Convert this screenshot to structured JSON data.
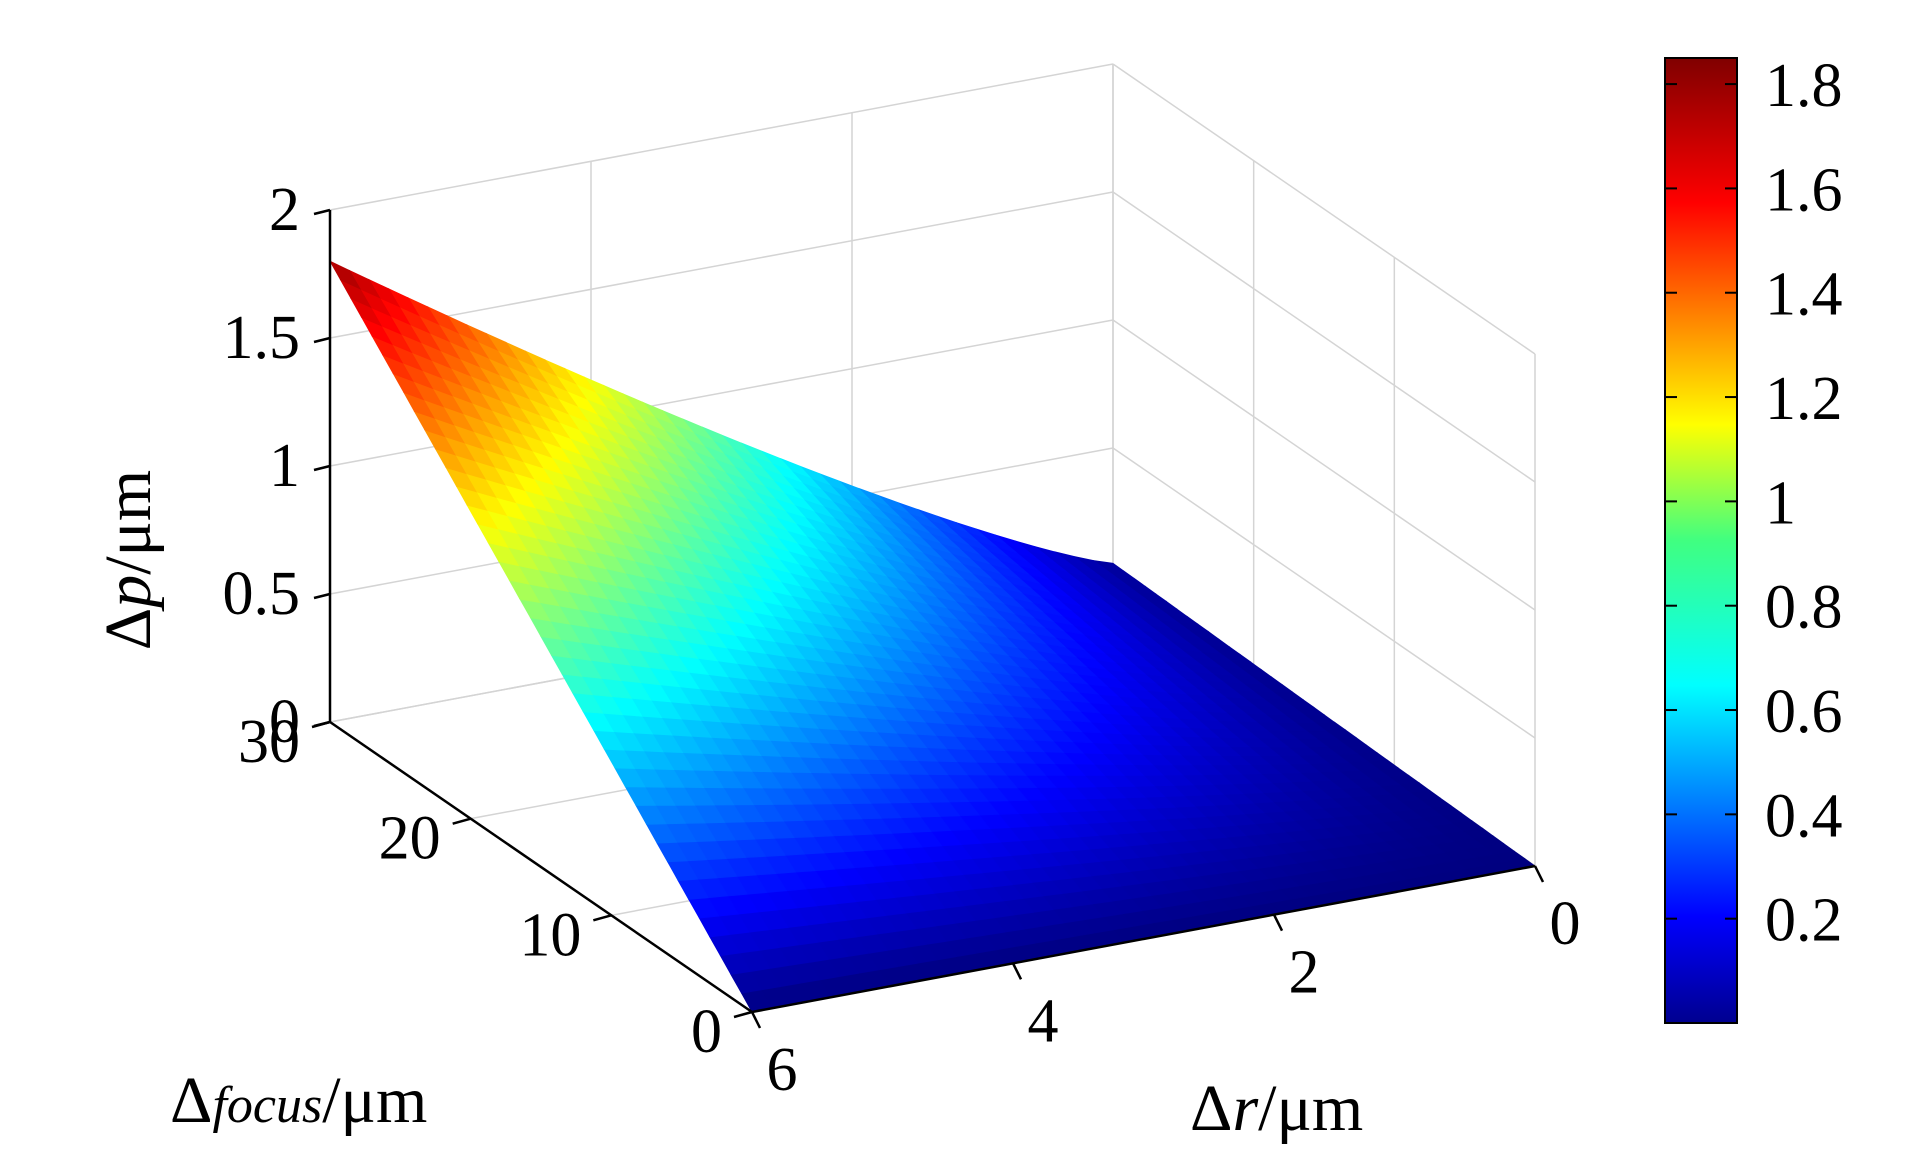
{
  "chart_data": {
    "type": "surface3d",
    "colormap": "jet",
    "grid": true,
    "surface": {
      "description_of_function": "dp decreases from 1.8 at (r=6, focus=30) toward 0 at focus=0 and r=0",
      "r_range": [
        0,
        6
      ],
      "focus_range": [
        0,
        30
      ],
      "corners": [
        {
          "r": 6,
          "focus": 30,
          "dp": 1.8
        },
        {
          "r": 0,
          "focus": 30,
          "dp": 0.05
        },
        {
          "r": 0,
          "focus": 0,
          "dp": 0.0
        },
        {
          "r": 6,
          "focus": 0,
          "dp": 0.0
        }
      ]
    },
    "x_axis": {
      "label_delta": "Δ",
      "label_var": "r",
      "label_unit": "/μm",
      "range": [
        0,
        6
      ],
      "ticks": [
        "0",
        "2",
        "4",
        "6"
      ]
    },
    "y_axis": {
      "label_delta": "Δ",
      "label_var": "focus",
      "label_unit": "/μm",
      "range": [
        0,
        30
      ],
      "ticks": [
        "0",
        "10",
        "20",
        "30"
      ]
    },
    "z_axis": {
      "label_delta": "Δ",
      "label_var": "p",
      "label_unit": "/μm",
      "range": [
        0,
        2
      ],
      "ticks": [
        "0",
        "0.5",
        "1",
        "1.5",
        "2"
      ]
    },
    "colorbar": {
      "range": [
        0,
        1.85
      ],
      "ticks": [
        "0.2",
        "0.4",
        "0.6",
        "0.8",
        "1",
        "1.2",
        "1.4",
        "1.6",
        "1.8"
      ],
      "placement": "right"
    }
  }
}
